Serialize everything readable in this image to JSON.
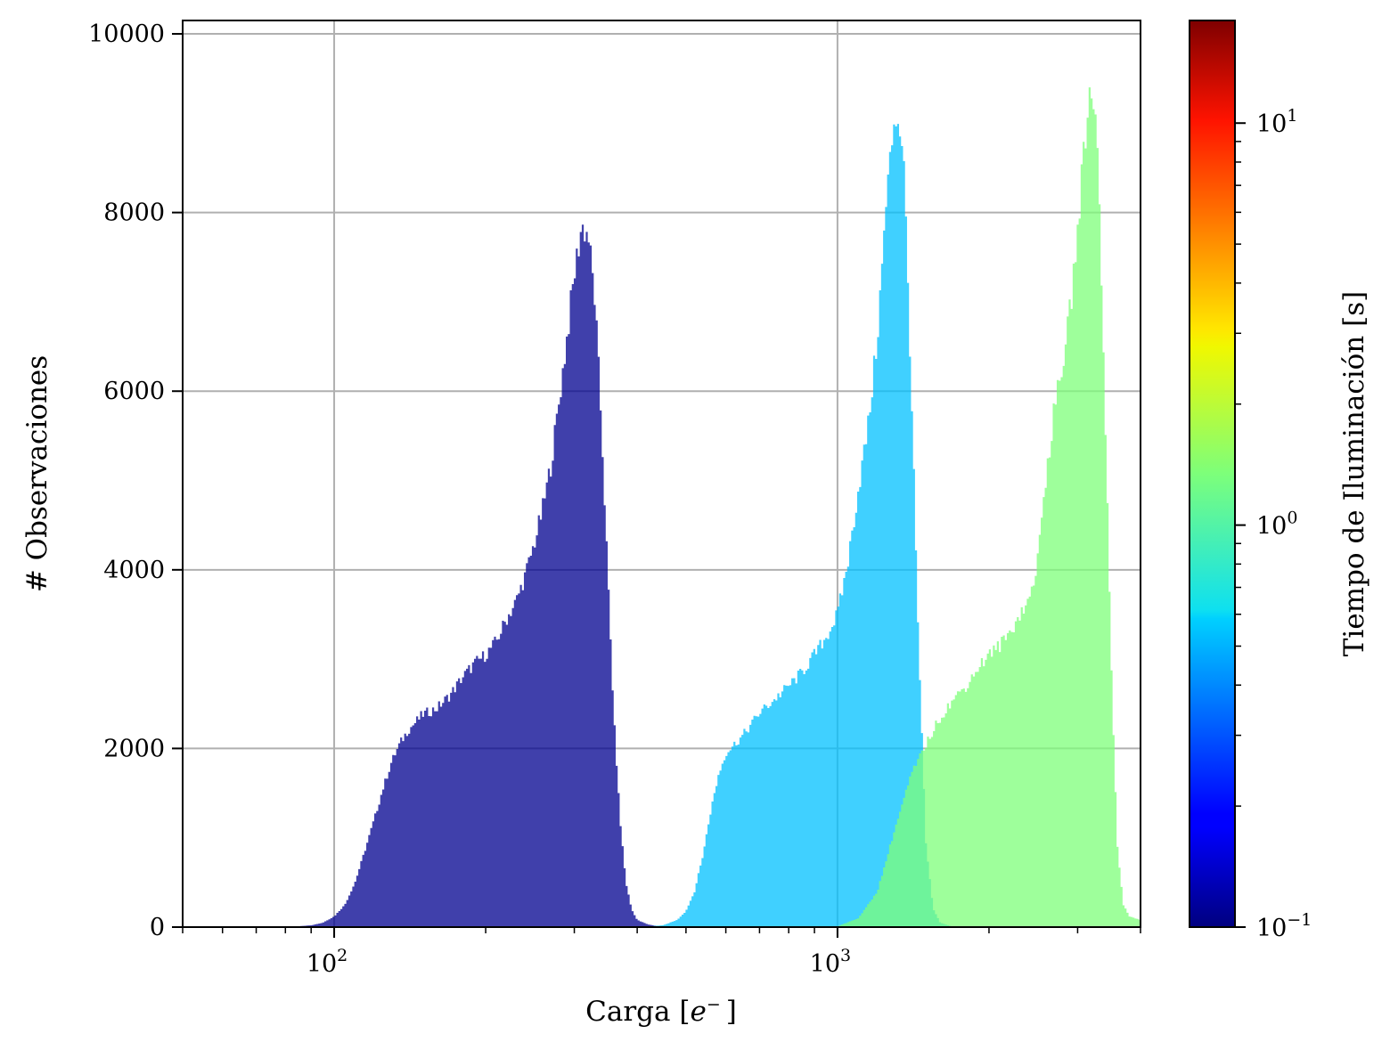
{
  "chart_data": {
    "type": "histogram",
    "xlabel": "Carga [",
    "xlabel_math": "e",
    "xlabel_sup": "−",
    "xlabel_end": "]",
    "ylabel": "# Observaciones",
    "x_scale": "log",
    "xlim": [
      50,
      4000
    ],
    "ylim": [
      0,
      10150
    ],
    "x_ticks": [
      {
        "value": 100,
        "base": "10",
        "exp": "2"
      },
      {
        "value": 1000,
        "base": "10",
        "exp": "3"
      }
    ],
    "y_ticks": [
      {
        "value": 0,
        "label": "0"
      },
      {
        "value": 2000,
        "label": "2000"
      },
      {
        "value": 4000,
        "label": "4000"
      },
      {
        "value": 6000,
        "label": "6000"
      },
      {
        "value": 8000,
        "label": "8000"
      },
      {
        "value": 10000,
        "label": "10000"
      }
    ],
    "grid": true,
    "series": [
      {
        "color": "#00008f",
        "opacity": 0.75,
        "points": [
          [
            80,
            0
          ],
          [
            90,
            20
          ],
          [
            95,
            50
          ],
          [
            100,
            120
          ],
          [
            105,
            250
          ],
          [
            110,
            500
          ],
          [
            115,
            850
          ],
          [
            120,
            1200
          ],
          [
            125,
            1550
          ],
          [
            130,
            1850
          ],
          [
            135,
            2050
          ],
          [
            140,
            2200
          ],
          [
            150,
            2380
          ],
          [
            160,
            2450
          ],
          [
            170,
            2600
          ],
          [
            180,
            2800
          ],
          [
            190,
            2950
          ],
          [
            200,
            3050
          ],
          [
            210,
            3200
          ],
          [
            220,
            3450
          ],
          [
            230,
            3650
          ],
          [
            240,
            3950
          ],
          [
            250,
            4300
          ],
          [
            260,
            4700
          ],
          [
            270,
            5200
          ],
          [
            280,
            5900
          ],
          [
            290,
            6600
          ],
          [
            300,
            7300
          ],
          [
            310,
            7850
          ],
          [
            320,
            7750
          ],
          [
            330,
            7000
          ],
          [
            340,
            5600
          ],
          [
            350,
            3900
          ],
          [
            360,
            2300
          ],
          [
            370,
            1200
          ],
          [
            380,
            500
          ],
          [
            390,
            200
          ],
          [
            400,
            80
          ],
          [
            420,
            30
          ],
          [
            450,
            0
          ]
        ]
      },
      {
        "color": "#00c0ff",
        "opacity": 0.75,
        "points": [
          [
            400,
            0
          ],
          [
            450,
            20
          ],
          [
            480,
            80
          ],
          [
            500,
            180
          ],
          [
            520,
            400
          ],
          [
            540,
            800
          ],
          [
            560,
            1300
          ],
          [
            580,
            1700
          ],
          [
            600,
            1950
          ],
          [
            650,
            2150
          ],
          [
            700,
            2400
          ],
          [
            750,
            2550
          ],
          [
            800,
            2700
          ],
          [
            850,
            2850
          ],
          [
            900,
            3050
          ],
          [
            950,
            3250
          ],
          [
            1000,
            3500
          ],
          [
            1050,
            4100
          ],
          [
            1100,
            4900
          ],
          [
            1150,
            5600
          ],
          [
            1200,
            6600
          ],
          [
            1250,
            8100
          ],
          [
            1300,
            9150
          ],
          [
            1350,
            8800
          ],
          [
            1400,
            6200
          ],
          [
            1450,
            3100
          ],
          [
            1500,
            900
          ],
          [
            1550,
            200
          ],
          [
            1600,
            50
          ],
          [
            1700,
            0
          ]
        ]
      },
      {
        "color": "#7dff7a",
        "opacity": 0.75,
        "points": [
          [
            900,
            0
          ],
          [
            1000,
            10
          ],
          [
            1100,
            100
          ],
          [
            1200,
            400
          ],
          [
            1300,
            1100
          ],
          [
            1400,
            1700
          ],
          [
            1500,
            2050
          ],
          [
            1600,
            2350
          ],
          [
            1700,
            2550
          ],
          [
            1800,
            2700
          ],
          [
            1900,
            2900
          ],
          [
            2000,
            3050
          ],
          [
            2100,
            3150
          ],
          [
            2200,
            3300
          ],
          [
            2300,
            3500
          ],
          [
            2400,
            3650
          ],
          [
            2500,
            4100
          ],
          [
            2600,
            5100
          ],
          [
            2700,
            5800
          ],
          [
            2800,
            6300
          ],
          [
            2900,
            6900
          ],
          [
            3000,
            7800
          ],
          [
            3100,
            8800
          ],
          [
            3200,
            9500
          ],
          [
            3300,
            8600
          ],
          [
            3400,
            5900
          ],
          [
            3500,
            2900
          ],
          [
            3600,
            900
          ],
          [
            3700,
            250
          ],
          [
            3800,
            120
          ],
          [
            4000,
            80
          ]
        ]
      }
    ]
  },
  "colorbar": {
    "label": "Tiempo de Iluminación [s]",
    "scale": "log",
    "range": [
      0.1,
      18
    ],
    "colormap": "jet",
    "ticks": [
      {
        "value": 0.1,
        "base": "10",
        "exp": "−1"
      },
      {
        "value": 1,
        "base": "10",
        "exp": "0"
      },
      {
        "value": 10,
        "base": "10",
        "exp": "1"
      }
    ]
  }
}
